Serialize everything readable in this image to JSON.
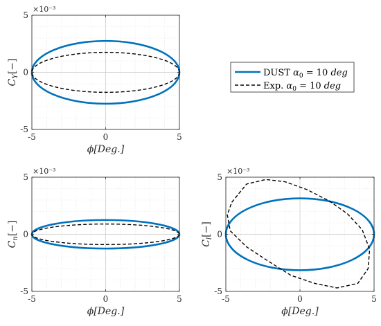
{
  "chart_data": [
    {
      "id": "cy",
      "type": "line",
      "xlabel": "ϕ[Deg.]",
      "ylabel": "C_Y[−]",
      "ylabel_main": "C",
      "ylabel_sub": "Y",
      "ylabel_tail": "[−]",
      "xlim": [
        -5,
        5
      ],
      "ylim": [
        -5,
        5
      ],
      "y_multiplier": "×10⁻³",
      "x_ticks": [
        "-5",
        "0",
        "5"
      ],
      "y_ticks": [
        "5",
        "0",
        "-5"
      ],
      "grid": true,
      "series": [
        {
          "name": "DUST α0 = 10 deg",
          "style": "solid",
          "color": "#0072BD",
          "shape": "ellipse",
          "cx": 0,
          "cy": 0,
          "rx": 5,
          "ry": 2.75,
          "tilt": 0
        },
        {
          "name": "Exp. α0 = 10 deg",
          "style": "dashed",
          "color": "#000000",
          "shape": "ellipse",
          "cx": 0,
          "cy": 0,
          "rx": 5,
          "ry": 1.75,
          "tilt": 0
        }
      ]
    },
    {
      "id": "cn",
      "type": "line",
      "xlabel": "ϕ[Deg.]",
      "ylabel": "C_n[−]",
      "ylabel_main": "C",
      "ylabel_sub": "n",
      "ylabel_tail": "[−]",
      "xlim": [
        -5,
        5
      ],
      "ylim": [
        -5,
        5
      ],
      "y_multiplier": "×10⁻³",
      "x_ticks": [
        "-5",
        "0",
        "5"
      ],
      "y_ticks": [
        "5",
        "0",
        "-5"
      ],
      "grid": true,
      "series": [
        {
          "name": "DUST α0 = 10 deg",
          "style": "solid",
          "color": "#0072BD",
          "shape": "ellipse",
          "cx": 0,
          "cy": 0,
          "rx": 5,
          "ry": 1.25,
          "tilt": 0
        },
        {
          "name": "Exp. α0 = 10 deg",
          "style": "dashed",
          "color": "#000000",
          "shape": "ellipse",
          "cx": 0,
          "cy": 0,
          "rx": 5,
          "ry": 0.9,
          "tilt": 0
        }
      ]
    },
    {
      "id": "cl",
      "type": "line",
      "xlabel": "ϕ[Deg.]",
      "ylabel": "C_l[−]",
      "ylabel_main": "C",
      "ylabel_sub": "l",
      "ylabel_tail": "[−]",
      "xlim": [
        -5,
        5
      ],
      "ylim": [
        -5,
        5
      ],
      "y_multiplier": "×10⁻³",
      "x_ticks": [
        "-5",
        "0",
        "5"
      ],
      "y_ticks": [
        "5",
        "0",
        "-5"
      ],
      "grid": true,
      "series": [
        {
          "name": "DUST α0 = 10 deg",
          "style": "solid",
          "color": "#0072BD",
          "shape": "ellipse",
          "cx": 0,
          "cy": 0,
          "rx": 5,
          "ry": 3.15,
          "tilt": 0
        },
        {
          "name": "Exp. α0 = 10 deg",
          "style": "dashed",
          "color": "#000000",
          "shape": "points",
          "points": [
            [
              -4.6,
              2.8
            ],
            [
              -3.6,
              4.4
            ],
            [
              -2.3,
              4.8
            ],
            [
              -1,
              4.6
            ],
            [
              0.5,
              3.9
            ],
            [
              2,
              2.9
            ],
            [
              3.2,
              1.8
            ],
            [
              4.2,
              0.4
            ],
            [
              4.7,
              -1.3
            ],
            [
              4.6,
              -3.0
            ],
            [
              3.9,
              -4.3
            ],
            [
              2.5,
              -4.7
            ],
            [
              1.0,
              -4.3
            ],
            [
              -0.6,
              -3.6
            ],
            [
              -2.2,
              -2.3
            ],
            [
              -3.6,
              -1.1
            ],
            [
              -4.7,
              0.3
            ],
            [
              -4.9,
              1.7
            ],
            [
              -4.6,
              2.8
            ]
          ]
        }
      ]
    }
  ],
  "legend": {
    "entries": [
      {
        "label": "DUST α0 = 10 deg",
        "text": "DUST ",
        "math": "α",
        "sub": "0",
        "rest": " = 10 ",
        "unit": "deg",
        "style": "solid",
        "color": "#0072BD"
      },
      {
        "label": "Exp. α0 = 10 deg",
        "text": "Exp. ",
        "math": "α",
        "sub": "0",
        "rest": " = 10 ",
        "unit": "deg",
        "style": "dashed",
        "color": "#000000"
      }
    ]
  }
}
